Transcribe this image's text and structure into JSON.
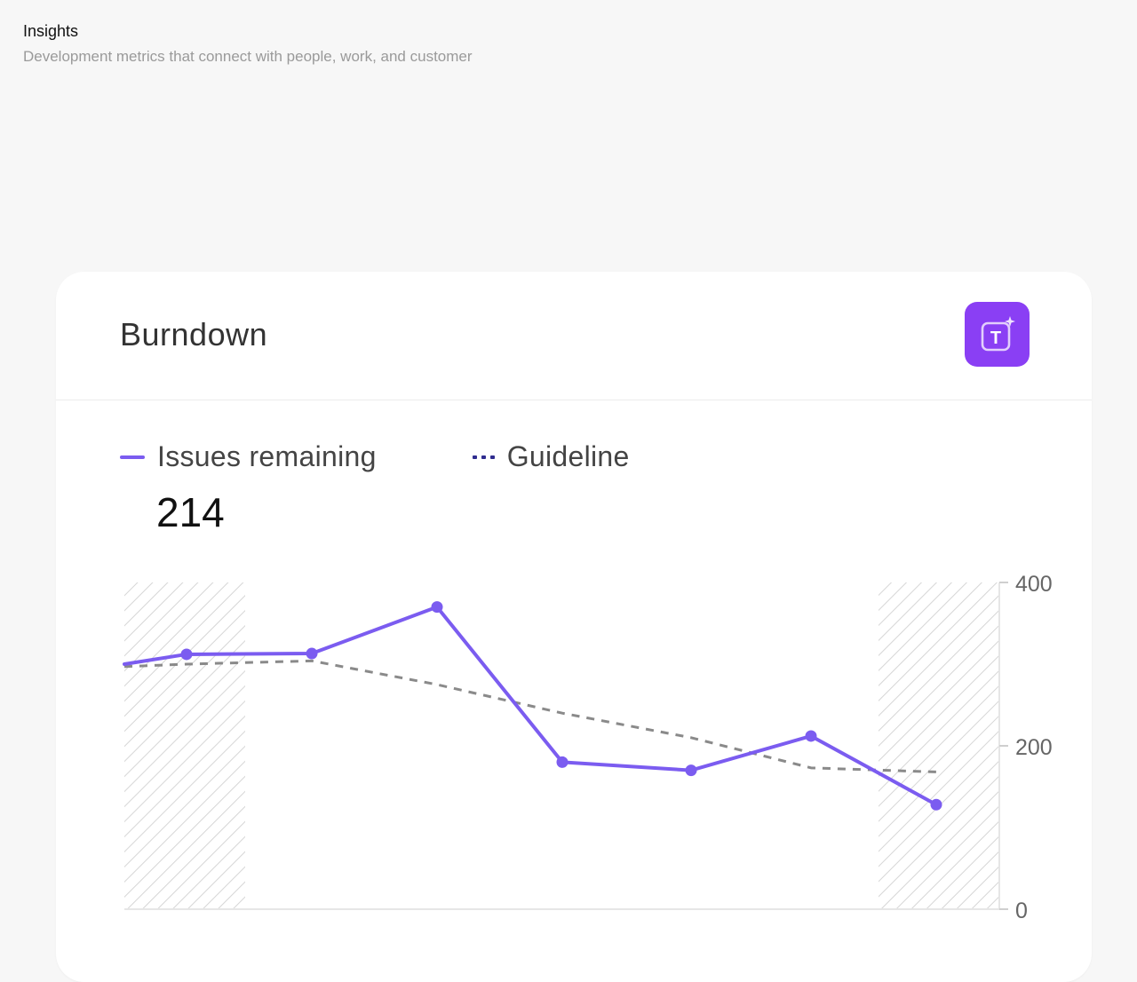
{
  "page": {
    "title": "Insights",
    "subtitle": "Development metrics that connect with people, work, and customer"
  },
  "card": {
    "title": "Burndown",
    "ai_button_letter": "T",
    "metric_value": "214"
  },
  "colors": {
    "accent": "#7b5cf0",
    "guideline": "#8a8a8a",
    "ai_button": "#8a3ff4"
  },
  "chart_data": {
    "type": "line",
    "x": [
      0,
      1,
      2,
      3,
      4,
      5,
      6,
      7
    ],
    "series": [
      {
        "name": "Issues remaining",
        "values": [
          300,
          312,
          313,
          370,
          180,
          170,
          212,
          128
        ],
        "style": "solid"
      },
      {
        "name": "Guideline",
        "values": [
          297,
          300,
          304,
          275,
          240,
          210,
          173,
          168
        ],
        "style": "dashed"
      }
    ],
    "yticks": [
      0,
      200,
      400
    ],
    "ylim": [
      0,
      400
    ],
    "legend": "top-left",
    "grid": false
  }
}
